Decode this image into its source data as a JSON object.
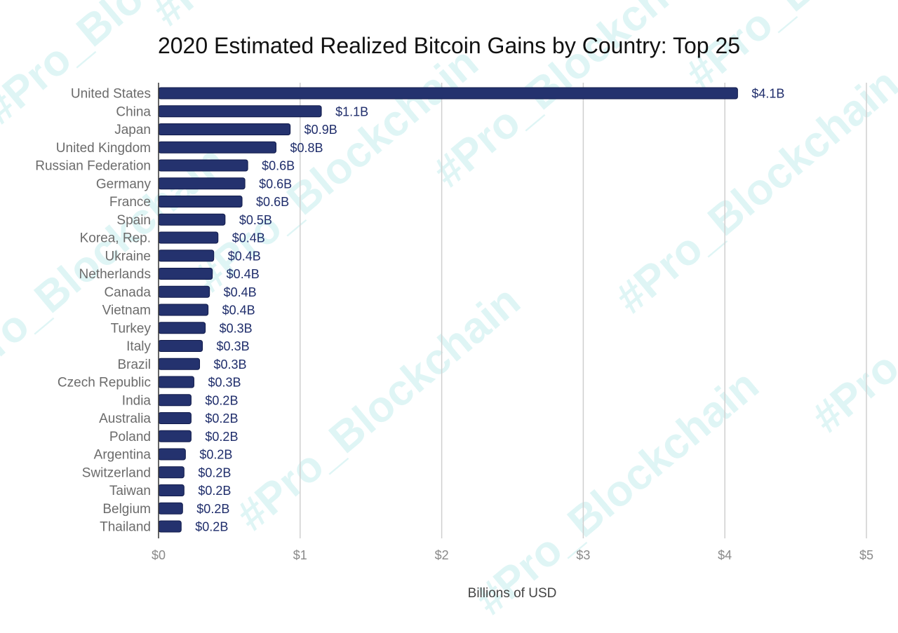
{
  "watermark": "#Pro_Blockchain",
  "chart_data": {
    "type": "bar",
    "orientation": "horizontal",
    "title": "2020 Estimated Realized Bitcoin Gains by Country: Top 25",
    "xlabel": "Billions of USD",
    "ylabel": "",
    "xlim": [
      0,
      5
    ],
    "xticks": [
      0,
      1,
      2,
      3,
      4,
      5
    ],
    "xtick_labels": [
      "$0",
      "$1",
      "$2",
      "$3",
      "$4",
      "$5"
    ],
    "grid": "vertical",
    "bar_color": "#24326e",
    "categories": [
      "United States",
      "China",
      "Japan",
      "United Kingdom",
      "Russian Federation",
      "Germany",
      "France",
      "Spain",
      "Korea, Rep.",
      "Ukraine",
      "Netherlands",
      "Canada",
      "Vietnam",
      "Turkey",
      "Italy",
      "Brazil",
      "Czech Republic",
      "India",
      "Australia",
      "Poland",
      "Argentina",
      "Switzerland",
      "Taiwan",
      "Belgium",
      "Thailand"
    ],
    "values": [
      4.09,
      1.15,
      0.93,
      0.83,
      0.63,
      0.61,
      0.59,
      0.47,
      0.42,
      0.39,
      0.38,
      0.36,
      0.35,
      0.33,
      0.31,
      0.29,
      0.25,
      0.23,
      0.23,
      0.23,
      0.19,
      0.18,
      0.18,
      0.17,
      0.16
    ],
    "data_labels": [
      "$4.1B",
      "$1.1B",
      "$0.9B",
      "$0.8B",
      "$0.6B",
      "$0.6B",
      "$0.6B",
      "$0.5B",
      "$0.4B",
      "$0.4B",
      "$0.4B",
      "$0.4B",
      "$0.4B",
      "$0.3B",
      "$0.3B",
      "$0.3B",
      "$0.3B",
      "$0.2B",
      "$0.2B",
      "$0.2B",
      "$0.2B",
      "$0.2B",
      "$0.2B",
      "$0.2B",
      "$0.2B"
    ]
  }
}
